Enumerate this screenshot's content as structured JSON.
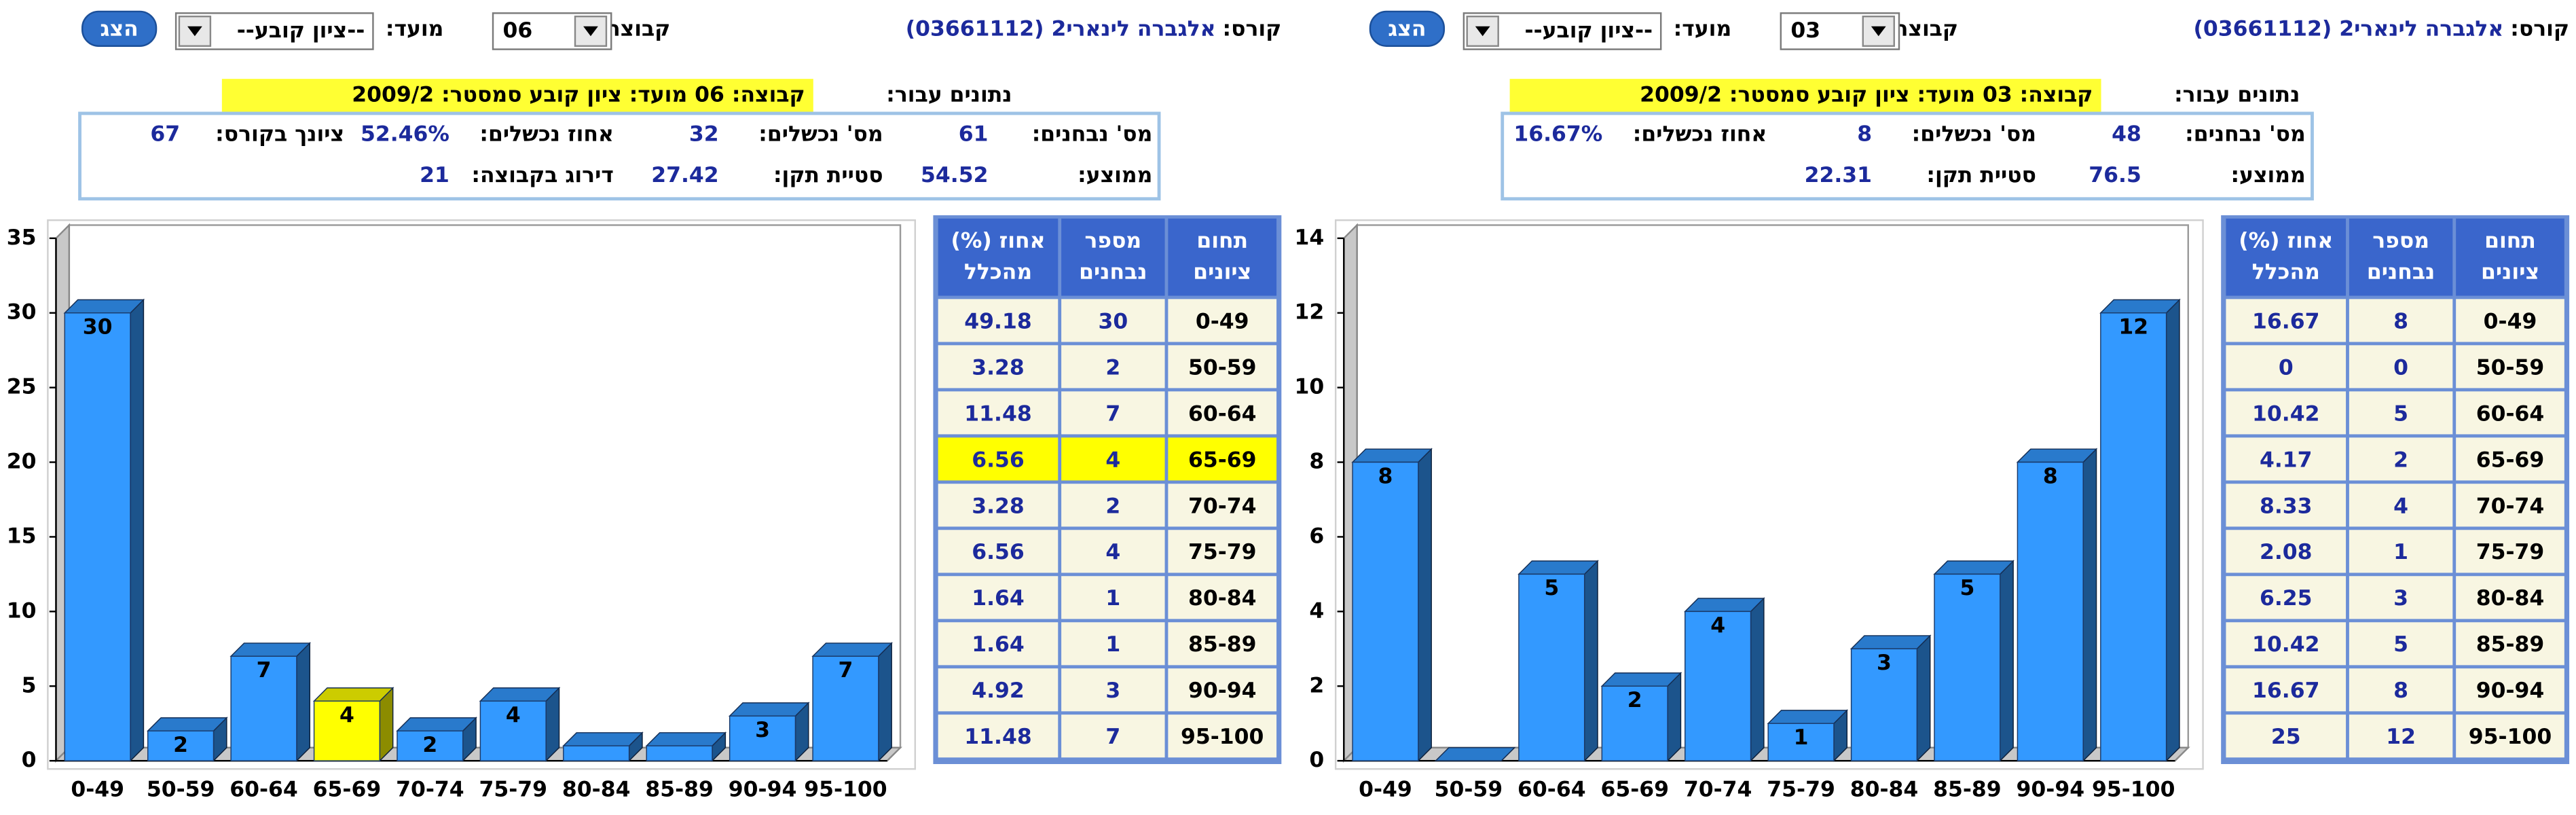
{
  "panels": [
    {
      "course_label": "קורס:",
      "course": "אלגברה לינארי2 (03661112)",
      "group_label": "קבוצה:",
      "group": "06",
      "term_label": "מועד:",
      "term": "--ציון קובע--",
      "button": "הצג",
      "data_for_label": "נתונים עבור:",
      "data_for": "קבוצה: 06   מועד: ציון קובע   סמסטר: 2009/2",
      "stats": [
        [
          {
            "label": "מס' נבחנים:",
            "value": 61
          },
          {
            "label": "מס' נכשלים:",
            "value": 32
          },
          {
            "label": "אחוז נכשלים:",
            "value": "52.46%"
          },
          {
            "label": "ציונך בקורס:",
            "value": 67
          }
        ],
        [
          {
            "label": "ממוצע:",
            "value": 54.52
          },
          {
            "label": "סטיית תקן:",
            "value": 27.42
          },
          {
            "label": "דירוג בקבוצה:",
            "value": 21
          }
        ]
      ],
      "table": {
        "headers": [
          [
            "תחום",
            "ציונים"
          ],
          [
            "מספר",
            "נבחנים"
          ],
          [
            "אחוז (%)",
            "מהכלל"
          ]
        ],
        "percent": [
          49.18,
          3.28,
          11.48,
          6.56,
          3.28,
          6.56,
          1.64,
          1.64,
          4.92,
          11.48
        ]
      }
    },
    {
      "course_label": "קורס:",
      "course": "אלגברה לינארי2 (03661112)",
      "group_label": "קבוצה:",
      "group": "03",
      "term_label": "מועד:",
      "term": "--ציון קובע--",
      "button": "הצג",
      "data_for_label": "נתונים עבור:",
      "data_for": "קבוצה: 03   מועד: ציון קובע   סמסטר: 2009/2",
      "stats": [
        [
          {
            "label": "מס' נבחנים:",
            "value": 48
          },
          {
            "label": "מס' נכשלים:",
            "value": 8
          },
          {
            "label": "אחוז נכשלים:",
            "value": "16.67%"
          }
        ],
        [
          {
            "label": "ממוצע:",
            "value": 76.5
          },
          {
            "label": "סטיית תקן:",
            "value": 22.31
          }
        ]
      ],
      "table": {
        "headers": [
          [
            "תחום",
            "ציונים"
          ],
          [
            "מספר",
            "נבחנים"
          ],
          [
            "אחוז (%)",
            "מהכלל"
          ]
        ],
        "percent": [
          16.67,
          0,
          10.42,
          4.17,
          8.33,
          2.08,
          6.25,
          10.42,
          16.67,
          25
        ]
      }
    }
  ],
  "chart_data": [
    {
      "type": "bar",
      "categories": [
        "0-49",
        "50-59",
        "60-64",
        "65-69",
        "70-74",
        "75-79",
        "80-84",
        "85-89",
        "90-94",
        "95-100"
      ],
      "values": [
        30,
        2,
        7,
        4,
        2,
        4,
        1,
        1,
        3,
        7
      ],
      "color": "#3399ff",
      "bar_colors": [
        "#3399ff",
        "#3399ff",
        "#3399ff",
        "#ffff00",
        "#3399ff",
        "#3399ff",
        "#3399ff",
        "#3399ff",
        "#3399ff",
        "#3399ff"
      ],
      "ylim": [
        0,
        35
      ],
      "yticks": [
        0,
        5,
        10,
        15,
        20,
        25,
        30,
        35
      ]
    },
    {
      "type": "bar",
      "categories": [
        "0-49",
        "50-59",
        "60-64",
        "65-69",
        "70-74",
        "75-79",
        "80-84",
        "85-89",
        "90-94",
        "95-100"
      ],
      "values": [
        8,
        0,
        5,
        2,
        4,
        1,
        3,
        5,
        8,
        12
      ],
      "color": "#3399ff",
      "ylim": [
        0,
        14
      ],
      "yticks": [
        0,
        2,
        4,
        6,
        8,
        10,
        12,
        14
      ]
    }
  ]
}
